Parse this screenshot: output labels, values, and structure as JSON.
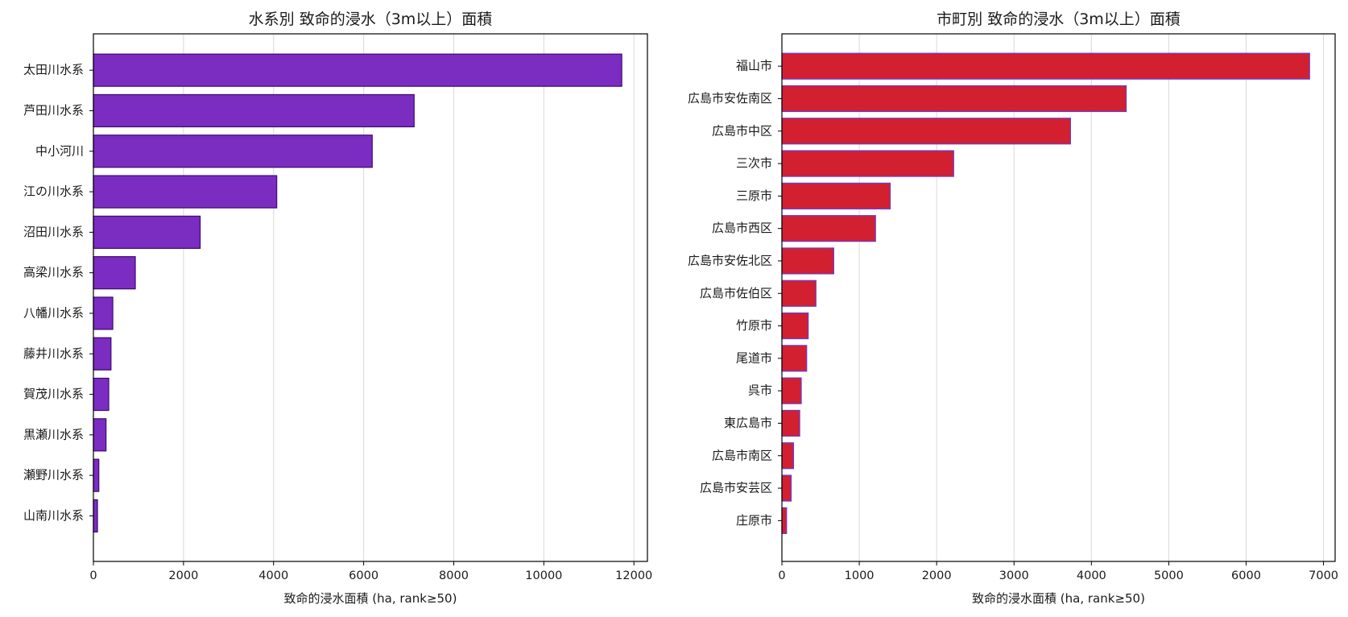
{
  "chart_data": [
    {
      "type": "bar",
      "orientation": "horizontal",
      "title": "水系別 致命的浸水（3m以上）面積",
      "xlabel": "致命的浸水面積 (ha, rank≥50)",
      "ylabel": "",
      "xlim": [
        0,
        12300
      ],
      "xticks": [
        0,
        2000,
        4000,
        6000,
        8000,
        10000,
        12000
      ],
      "grid": "x",
      "fill_color": "#7b2cc1",
      "edge_color": "#3d0a6e",
      "categories": [
        "太田川水系",
        "芦田川水系",
        "中小河川",
        "江の川水系",
        "沼田川水系",
        "高梁川水系",
        "八幡川水系",
        "藤井川水系",
        "賀茂川水系",
        "黒瀬川水系",
        "瀬野川水系",
        "山南川水系"
      ],
      "values": [
        11730,
        7120,
        6190,
        4070,
        2370,
        930,
        430,
        390,
        340,
        280,
        120,
        90
      ]
    },
    {
      "type": "bar",
      "orientation": "horizontal",
      "title": "市町別 致命的浸水（3m以上）面積",
      "xlabel": "致命的浸水面積 (ha, rank≥50)",
      "ylabel": "",
      "xlim": [
        0,
        7150
      ],
      "xticks": [
        0,
        1000,
        2000,
        3000,
        4000,
        5000,
        6000,
        7000
      ],
      "grid": "x",
      "fill_color": "#d22030",
      "edge_color": "#6a3ad4",
      "categories": [
        "福山市",
        "広島市安佐南区",
        "広島市中区",
        "三次市",
        "三原市",
        "広島市西区",
        "広島市安佐北区",
        "広島市佐伯区",
        "竹原市",
        "尾道市",
        "呉市",
        "東広島市",
        "広島市南区",
        "広島市安芸区",
        "庄原市"
      ],
      "values": [
        6820,
        4450,
        3730,
        2220,
        1400,
        1210,
        670,
        440,
        340,
        320,
        250,
        230,
        150,
        120,
        60
      ]
    }
  ]
}
